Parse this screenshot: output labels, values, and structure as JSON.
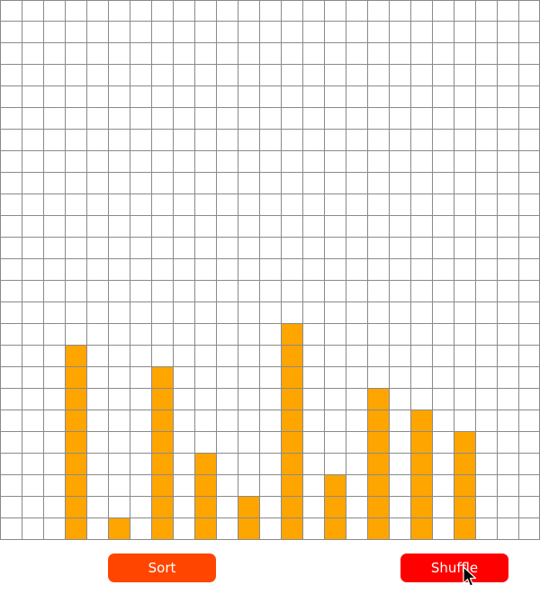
{
  "grid": {
    "columns": 25,
    "rows": 25,
    "line_color": "#8a8a8a",
    "background": "#ffffff"
  },
  "chart_data": {
    "type": "bar",
    "bar_color": "#ffa500",
    "columns": [
      3,
      5,
      7,
      9,
      11,
      13,
      15,
      17,
      19,
      21
    ],
    "values": [
      9,
      1,
      8,
      4,
      2,
      10,
      3,
      7,
      6,
      5
    ],
    "ylim": [
      0,
      25
    ]
  },
  "controls": {
    "sort_label": "Sort",
    "sort_color": "#ff4500",
    "shuffle_label": "Shuffle",
    "shuffle_color": "#ff0000"
  },
  "cursor": {
    "icon": "arrow-cursor-icon"
  }
}
